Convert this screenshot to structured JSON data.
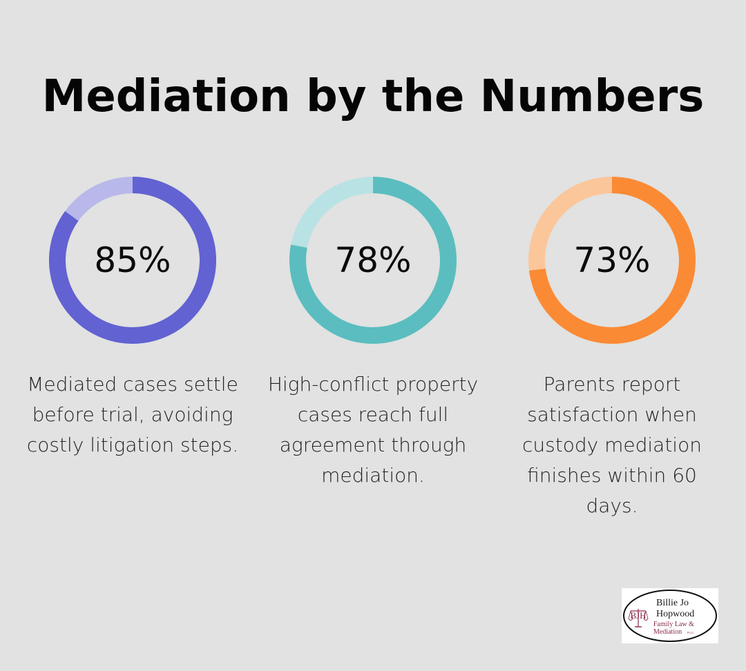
{
  "title": "Mediation by the Numbers",
  "chart_data": {
    "type": "pie",
    "variant": "donut",
    "items": [
      {
        "value": 85,
        "label": "85%",
        "description": "Mediated cases settle before trial, avoiding costly litigation steps.",
        "color": "#6262d2",
        "track_color": "#b8b8ea"
      },
      {
        "value": 78,
        "label": "78%",
        "description": "High-conflict property cases reach full agreement through mediation.",
        "color": "#5bbdbf",
        "track_color": "#b9e2e4"
      },
      {
        "value": 73,
        "label": "73%",
        "description": "Parents report satisfaction when custody mediation finishes within 60 days.",
        "color": "#fb8a35",
        "track_color": "#fcc69b"
      }
    ]
  },
  "logo": {
    "line1": "Billie Jo",
    "line2": "Hopwood",
    "line3": "Family Law &",
    "line4": "Mediation",
    "suffix": "PLLC",
    "monogram": "BJH",
    "border_color": "#111111",
    "text_color": "#1a1a1a",
    "accent_color": "#8a2b4a"
  }
}
